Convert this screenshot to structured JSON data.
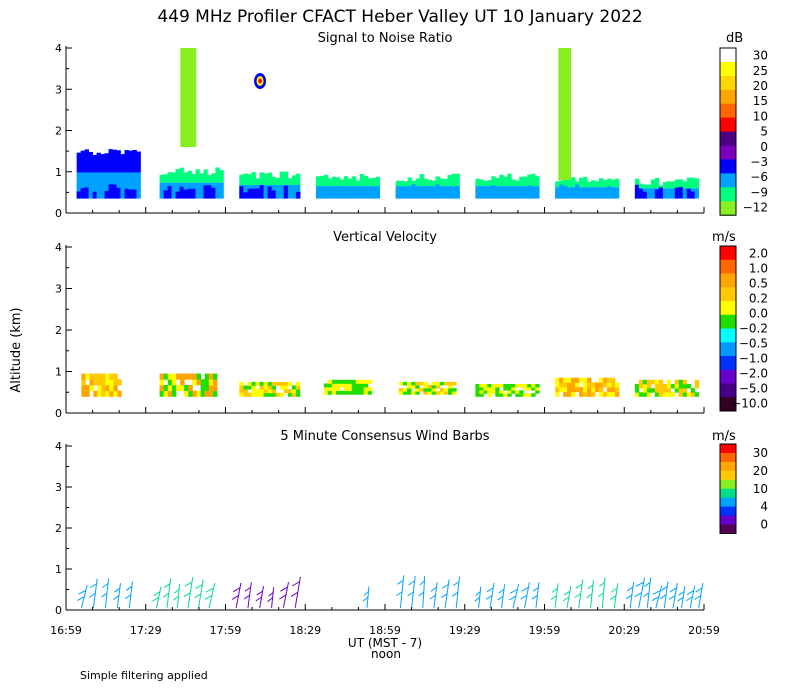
{
  "title": "449 MHz Profiler CFACT Heber Valley UT 10 January 2022",
  "y_axis_label": "Altitude (km)",
  "x_axis_label": "UT  (MST - 7)",
  "noon_label": "noon",
  "footer_note": "Simple filtering applied",
  "colors": {
    "snr_scale": [
      "#ffffff",
      "#ffff00",
      "#ffd700",
      "#ffa500",
      "#ff6600",
      "#ff0000",
      "#4b0082",
      "#7b00bb",
      "#0000ff",
      "#00a2ff",
      "#00ff7f",
      "#88ee22"
    ],
    "vv_scale": [
      "#ff0000",
      "#ff6600",
      "#ffa500",
      "#ffc800",
      "#ffff00",
      "#22dd00",
      "#00ffff",
      "#0099ff",
      "#0033ff",
      "#6600cc",
      "#440088",
      "#330022"
    ],
    "wind_scale": [
      "#ff0000",
      "#ff6600",
      "#ffa500",
      "#ffc800",
      "#88ee22",
      "#00dd88",
      "#00a2ff",
      "#0033ff",
      "#6600cc",
      "#550055"
    ]
  },
  "chart_data": [
    {
      "type": "heatmap",
      "title": "Signal to Noise Ratio",
      "colorbar_title": "dB",
      "colorbar_labels": [
        "30",
        "25",
        "20",
        "15",
        "10",
        "5",
        "0",
        "−3",
        "−6",
        "−9",
        "−12"
      ],
      "x_ticks": [
        "16:59",
        "17:29",
        "17:59",
        "18:29",
        "18:59",
        "19:29",
        "19:59",
        "20:29",
        "20:59"
      ],
      "y_ticks": [
        "0",
        "1",
        "2",
        "3",
        "4"
      ],
      "xlim_hours": [
        16.9833,
        20.9833
      ],
      "ylim": [
        0,
        4
      ],
      "blocks": [
        {
          "t0": 17.05,
          "t1": 17.45,
          "z0": 0.35,
          "z1": 1.5,
          "top": 8,
          "mid": 9,
          "low": 8
        },
        {
          "t0": 17.57,
          "t1": 17.97,
          "z0": 0.35,
          "z1": 1.05,
          "top": 10,
          "mid": 9,
          "low": 8
        },
        {
          "t0": 18.07,
          "t1": 18.45,
          "z0": 0.35,
          "z1": 0.95,
          "top": 10,
          "mid": 9,
          "low": 8
        },
        {
          "t0": 18.55,
          "t1": 18.95,
          "z0": 0.35,
          "z1": 0.9,
          "top": 10,
          "mid": 9,
          "low": 9
        },
        {
          "t0": 19.05,
          "t1": 19.45,
          "z0": 0.35,
          "z1": 0.9,
          "top": 10,
          "mid": 9,
          "low": 9
        },
        {
          "t0": 19.55,
          "t1": 19.95,
          "z0": 0.35,
          "z1": 0.9,
          "top": 10,
          "mid": 9,
          "low": 9
        },
        {
          "t0": 20.05,
          "t1": 20.45,
          "z0": 0.35,
          "z1": 0.85,
          "top": 10,
          "mid": 9,
          "low": 9
        },
        {
          "t0": 20.55,
          "t1": 20.95,
          "z0": 0.35,
          "z1": 0.8,
          "top": 10,
          "mid": 9,
          "low": 8
        }
      ],
      "columns": [
        {
          "t0": 17.7,
          "t1": 17.8,
          "z0": 1.6,
          "z1": 4.0,
          "color": 11
        },
        {
          "t0": 20.07,
          "t1": 20.15,
          "z0": 0.8,
          "z1": 4.0,
          "color": 11
        }
      ],
      "spot": {
        "t": 18.2,
        "z": 3.2,
        "colors": [
          8,
          1,
          5
        ]
      }
    },
    {
      "type": "heatmap",
      "title": "Vertical Velocity",
      "colorbar_title": "m/s",
      "colorbar_labels": [
        "2.0",
        "1.0",
        "0.5",
        "0.2",
        "0.0",
        "−0.2",
        "−0.5",
        "−1.0",
        "−2.0",
        "−5.0",
        "−10.0"
      ],
      "x_ticks": [
        "16:59",
        "17:29",
        "17:59",
        "18:29",
        "18:59",
        "19:29",
        "19:59",
        "20:29",
        "20:59"
      ],
      "y_ticks": [
        "0",
        "1",
        "2",
        "3",
        "4"
      ],
      "xlim_hours": [
        16.9833,
        20.9833
      ],
      "ylim": [
        0,
        4
      ],
      "blocks": [
        {
          "t0": 17.08,
          "t1": 17.33,
          "z0": 0.4,
          "z1": 0.95,
          "colors": [
            3,
            4,
            2
          ]
        },
        {
          "t0": 17.57,
          "t1": 17.93,
          "z0": 0.4,
          "z1": 0.95,
          "colors": [
            2,
            4,
            5
          ]
        },
        {
          "t0": 18.07,
          "t1": 18.45,
          "z0": 0.4,
          "z1": 0.75,
          "colors": [
            4,
            5,
            3
          ]
        },
        {
          "t0": 18.6,
          "t1": 18.9,
          "z0": 0.45,
          "z1": 0.8,
          "colors": [
            4,
            5
          ]
        },
        {
          "t0": 19.07,
          "t1": 19.43,
          "z0": 0.45,
          "z1": 0.75,
          "colors": [
            4,
            5,
            3
          ]
        },
        {
          "t0": 19.55,
          "t1": 19.95,
          "z0": 0.4,
          "z1": 0.7,
          "colors": [
            4,
            5
          ]
        },
        {
          "t0": 20.05,
          "t1": 20.45,
          "z0": 0.4,
          "z1": 0.85,
          "colors": [
            2,
            3,
            4
          ]
        },
        {
          "t0": 20.55,
          "t1": 20.95,
          "z0": 0.4,
          "z1": 0.8,
          "colors": [
            3,
            4,
            5
          ]
        }
      ]
    },
    {
      "type": "scatter",
      "title": "5 Minute Consensus Wind Barbs",
      "colorbar_title": "m/s",
      "colorbar_labels": [
        "30",
        "20",
        "10",
        "4",
        "0"
      ],
      "x_ticks": [
        "16:59",
        "17:29",
        "17:59",
        "18:29",
        "18:59",
        "19:29",
        "19:59",
        "20:29",
        "20:59"
      ],
      "y_ticks": [
        "0",
        "1",
        "2",
        "3",
        "4"
      ],
      "xlim_hours": [
        16.9833,
        20.9833
      ],
      "ylim": [
        0,
        4
      ],
      "barb_groups": [
        {
          "t0": 17.08,
          "t1": 17.38,
          "n": 5,
          "color": 6
        },
        {
          "t0": 17.55,
          "t1": 17.88,
          "n": 6,
          "color": 5
        },
        {
          "t0": 18.05,
          "t1": 18.42,
          "n": 6,
          "color": 8
        },
        {
          "t0": 18.87,
          "t1": 18.87,
          "n": 1,
          "color": 6
        },
        {
          "t0": 19.08,
          "t1": 19.43,
          "n": 6,
          "color": 6
        },
        {
          "t0": 19.57,
          "t1": 19.93,
          "n": 6,
          "color": 6
        },
        {
          "t0": 20.05,
          "t1": 20.42,
          "n": 6,
          "color": 5
        },
        {
          "t0": 20.52,
          "t1": 20.95,
          "n": 9,
          "color": 6
        }
      ]
    }
  ]
}
